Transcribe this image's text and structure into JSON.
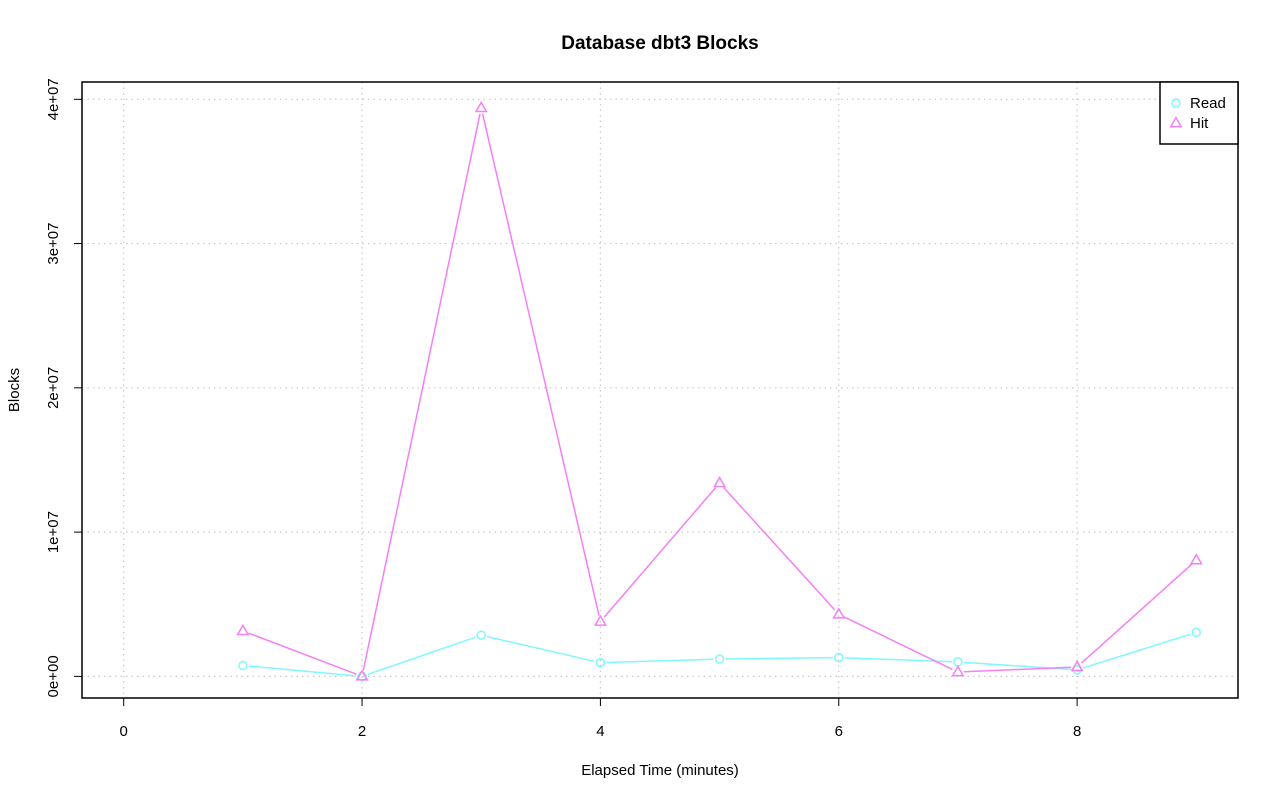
{
  "chart_data": {
    "type": "line",
    "title": "Database dbt3 Blocks",
    "xlabel": "Elapsed Time (minutes)",
    "ylabel": "Blocks",
    "xlim": [
      -0.35,
      9.35
    ],
    "ylim": [
      -1500000,
      41200000
    ],
    "x_ticks": [
      0,
      2,
      4,
      6,
      8
    ],
    "x_tick_labels": [
      "0",
      "2",
      "4",
      "6",
      "8"
    ],
    "y_ticks": [
      0,
      10000000,
      20000000,
      30000000,
      40000000
    ],
    "y_tick_labels": [
      "0e+00",
      "1e+07",
      "2e+07",
      "3e+07",
      "4e+07"
    ],
    "grid": true,
    "legend_position": "top-right",
    "x": [
      1,
      2,
      3,
      4,
      5,
      6,
      7,
      8,
      9
    ],
    "series": [
      {
        "name": "Read",
        "color": "#7ff7ff",
        "marker": "circle",
        "values": [
          750000,
          0,
          2850000,
          950000,
          1200000,
          1300000,
          1000000,
          450000,
          3050000
        ]
      },
      {
        "name": "Hit",
        "color": "#f57ff5",
        "marker": "triangle",
        "values": [
          3150000,
          0,
          39400000,
          3800000,
          13400000,
          4300000,
          300000,
          650000,
          8050000
        ]
      }
    ]
  }
}
